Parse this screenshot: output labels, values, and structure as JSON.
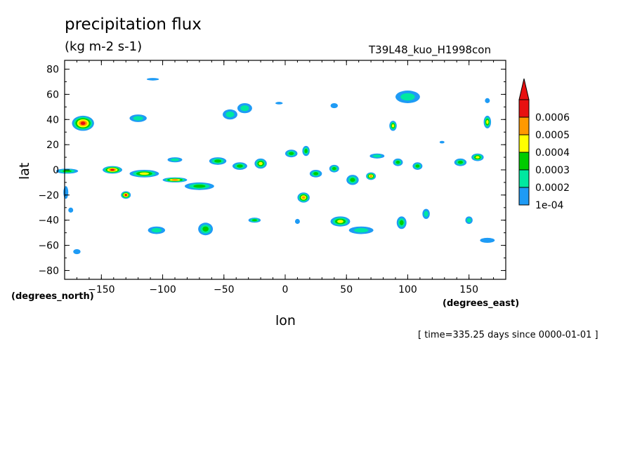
{
  "chart_data": {
    "type": "contour",
    "title": "precipitation flux",
    "units": "(kg m-2 s-1)",
    "run_label": "T39L48_kuo_H1998con",
    "xlabel": "lon",
    "ylabel": "lat",
    "x_unit_label": "(degrees_east)",
    "y_unit_label": "(degrees_north)",
    "time_label": "[ time=335.25 days since 0000-01-01 ]",
    "xlim": [
      -180,
      180
    ],
    "ylim": [
      -87,
      87
    ],
    "x_ticks": [
      "-150",
      "-100",
      "-50",
      "0",
      "50",
      "100",
      "150"
    ],
    "y_ticks": [
      "80",
      "60",
      "40",
      "20",
      "0",
      "-20",
      "-40",
      "-60",
      "-80"
    ],
    "levels": [
      "1e-04",
      "0.0002",
      "0.0003",
      "0.0004",
      "0.0005",
      "0.0006"
    ],
    "colors": [
      "#1e9bf5",
      "#00e8a0",
      "#00cc00",
      "#ffff00",
      "#ff9900",
      "#e81010"
    ],
    "features": [
      {
        "lon": -165,
        "lat": 37,
        "peak": 6,
        "rx": 9,
        "ry": 6
      },
      {
        "lon": -178,
        "lat": -1,
        "peak": 3,
        "rx": 9,
        "ry": 2
      },
      {
        "lon": -179,
        "lat": -18,
        "peak": 1,
        "rx": 2,
        "ry": 5
      },
      {
        "lon": -141,
        "lat": 0,
        "peak": 6,
        "rx": 8,
        "ry": 3
      },
      {
        "lon": -115,
        "lat": -3,
        "peak": 4,
        "rx": 12,
        "ry": 3
      },
      {
        "lon": -90,
        "lat": -8,
        "peak": 5,
        "rx": 10,
        "ry": 2
      },
      {
        "lon": -70,
        "lat": -13,
        "peak": 3,
        "rx": 12,
        "ry": 3
      },
      {
        "lon": -130,
        "lat": -20,
        "peak": 6,
        "rx": 4,
        "ry": 3
      },
      {
        "lon": -120,
        "lat": 41,
        "peak": 2,
        "rx": 7,
        "ry": 3
      },
      {
        "lon": -45,
        "lat": 44,
        "peak": 2,
        "rx": 6,
        "ry": 4
      },
      {
        "lon": -33,
        "lat": 49,
        "peak": 2,
        "rx": 6,
        "ry": 4
      },
      {
        "lon": -90,
        "lat": 8,
        "peak": 2,
        "rx": 6,
        "ry": 2
      },
      {
        "lon": -55,
        "lat": 7,
        "peak": 3,
        "rx": 7,
        "ry": 3
      },
      {
        "lon": -37,
        "lat": 3,
        "peak": 3,
        "rx": 6,
        "ry": 3
      },
      {
        "lon": -20,
        "lat": 5,
        "peak": 4,
        "rx": 5,
        "ry": 4
      },
      {
        "lon": -65,
        "lat": -47,
        "peak": 3,
        "rx": 6,
        "ry": 5
      },
      {
        "lon": -105,
        "lat": -48,
        "peak": 2,
        "rx": 7,
        "ry": 3
      },
      {
        "lon": -25,
        "lat": -40,
        "peak": 3,
        "rx": 5,
        "ry": 2
      },
      {
        "lon": 5,
        "lat": 13,
        "peak": 3,
        "rx": 5,
        "ry": 3
      },
      {
        "lon": 17,
        "lat": 15,
        "peak": 3,
        "rx": 3,
        "ry": 4
      },
      {
        "lon": 25,
        "lat": -3,
        "peak": 3,
        "rx": 5,
        "ry": 3
      },
      {
        "lon": 40,
        "lat": 1,
        "peak": 3,
        "rx": 4,
        "ry": 3
      },
      {
        "lon": 15,
        "lat": -22,
        "peak": 5,
        "rx": 5,
        "ry": 4
      },
      {
        "lon": 45,
        "lat": -41,
        "peak": 4,
        "rx": 8,
        "ry": 4
      },
      {
        "lon": 62,
        "lat": -48,
        "peak": 2,
        "rx": 10,
        "ry": 3
      },
      {
        "lon": 55,
        "lat": -8,
        "peak": 3,
        "rx": 5,
        "ry": 4
      },
      {
        "lon": 70,
        "lat": -5,
        "peak": 5,
        "rx": 4,
        "ry": 3
      },
      {
        "lon": 75,
        "lat": 11,
        "peak": 2,
        "rx": 6,
        "ry": 2
      },
      {
        "lon": 92,
        "lat": 6,
        "peak": 3,
        "rx": 4,
        "ry": 3
      },
      {
        "lon": 88,
        "lat": 35,
        "peak": 4,
        "rx": 3,
        "ry": 4
      },
      {
        "lon": 100,
        "lat": 58,
        "peak": 2,
        "rx": 10,
        "ry": 5
      },
      {
        "lon": 95,
        "lat": -42,
        "peak": 3,
        "rx": 4,
        "ry": 5
      },
      {
        "lon": 115,
        "lat": -35,
        "peak": 2,
        "rx": 3,
        "ry": 4
      },
      {
        "lon": 108,
        "lat": 3,
        "peak": 3,
        "rx": 4,
        "ry": 3
      },
      {
        "lon": 143,
        "lat": 6,
        "peak": 3,
        "rx": 5,
        "ry": 3
      },
      {
        "lon": 157,
        "lat": 10,
        "peak": 4,
        "rx": 5,
        "ry": 3
      },
      {
        "lon": 165,
        "lat": 38,
        "peak": 4,
        "rx": 3,
        "ry": 5
      },
      {
        "lon": 150,
        "lat": -40,
        "peak": 2,
        "rx": 3,
        "ry": 3
      },
      {
        "lon": 165,
        "lat": -56,
        "peak": 1,
        "rx": 6,
        "ry": 2
      },
      {
        "lon": -170,
        "lat": -65,
        "peak": 1,
        "rx": 3,
        "ry": 2
      },
      {
        "lon": -175,
        "lat": -32,
        "peak": 1,
        "rx": 2,
        "ry": 2
      },
      {
        "lon": -108,
        "lat": 72,
        "peak": 1,
        "rx": 5,
        "ry": 1
      },
      {
        "lon": -5,
        "lat": 53,
        "peak": 1,
        "rx": 3,
        "ry": 1
      },
      {
        "lon": 40,
        "lat": 51,
        "peak": 1,
        "rx": 3,
        "ry": 2
      },
      {
        "lon": 165,
        "lat": 55,
        "peak": 1,
        "rx": 2,
        "ry": 2
      },
      {
        "lon": 10,
        "lat": -41,
        "peak": 1,
        "rx": 2,
        "ry": 2
      },
      {
        "lon": 128,
        "lat": 22,
        "peak": 1,
        "rx": 2,
        "ry": 1
      }
    ]
  }
}
